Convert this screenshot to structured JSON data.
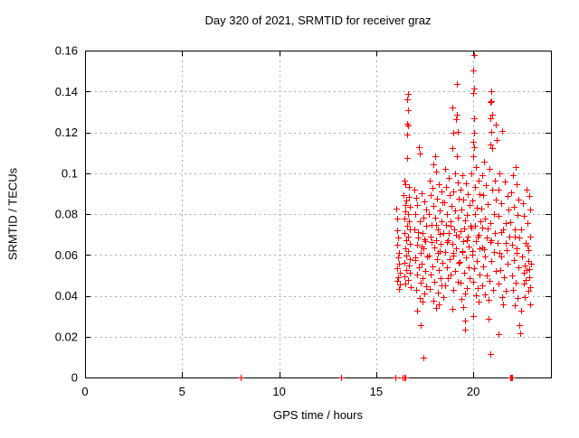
{
  "chart_data": {
    "type": "scatter",
    "title": "Day 320 of 2021, SRMTID for receiver graz",
    "xlabel": "GPS time / hours",
    "ylabel": "SRMTID / TECUs",
    "xlim": [
      0,
      24
    ],
    "ylim": [
      0,
      0.16
    ],
    "xticks": [
      0,
      5,
      10,
      15,
      20
    ],
    "xtick_labels": [
      "0",
      "5",
      "10",
      "15",
      "20"
    ],
    "yticks": [
      0,
      0.02,
      0.04,
      0.06,
      0.08,
      0.1,
      0.12,
      0.14,
      0.16
    ],
    "ytick_labels": [
      "0",
      "0.02",
      "0.04",
      "0.06",
      "0.08",
      "0.1",
      "0.12",
      "0.14",
      "0.16"
    ],
    "grid": true,
    "grid_style": "dashed",
    "grid_color": "#a8a8a8",
    "axis_color": "#000000",
    "background_color": "#ffffff",
    "legend": "none",
    "marker": "plus",
    "marker_color": "#ff0000",
    "points": [
      [
        8.02,
        0
      ],
      [
        13.2,
        0
      ],
      [
        15.98,
        0
      ],
      [
        16.38,
        0
      ],
      [
        16.44,
        0
      ],
      [
        16.5,
        0
      ],
      [
        21.9,
        0
      ],
      [
        21.94,
        0
      ],
      [
        21.98,
        0
      ],
      [
        16.04,
        0.0825
      ],
      [
        16.07,
        0.0776
      ],
      [
        16.1,
        0.0722
      ],
      [
        16.12,
        0.0684
      ],
      [
        16.08,
        0.0651
      ],
      [
        16.15,
        0.0612
      ],
      [
        16.11,
        0.0586
      ],
      [
        16.18,
        0.0558
      ],
      [
        16.06,
        0.0537
      ],
      [
        16.2,
        0.0511
      ],
      [
        16.14,
        0.0492
      ],
      [
        16.09,
        0.0475
      ],
      [
        16.22,
        0.0456
      ],
      [
        16.16,
        0.0433
      ],
      [
        16.62,
        0.1388
      ],
      [
        16.6,
        0.1362
      ],
      [
        16.63,
        0.1308
      ],
      [
        16.58,
        0.1242
      ],
      [
        16.64,
        0.1232
      ],
      [
        16.59,
        0.1188
      ],
      [
        16.61,
        0.1072
      ],
      [
        16.45,
        0.0962
      ],
      [
        16.52,
        0.0948
      ],
      [
        16.67,
        0.0931
      ],
      [
        16.42,
        0.0895
      ],
      [
        16.7,
        0.0882
      ],
      [
        16.55,
        0.0868
      ],
      [
        16.48,
        0.0845
      ],
      [
        16.73,
        0.0837
      ],
      [
        16.5,
        0.0815
      ],
      [
        16.63,
        0.0798
      ],
      [
        16.46,
        0.0779
      ],
      [
        16.69,
        0.0765
      ],
      [
        16.57,
        0.0744
      ],
      [
        16.74,
        0.0727
      ],
      [
        16.44,
        0.0709
      ],
      [
        16.66,
        0.0688
      ],
      [
        16.53,
        0.0672
      ],
      [
        16.71,
        0.0655
      ],
      [
        16.49,
        0.0634
      ],
      [
        16.62,
        0.0618
      ],
      [
        16.56,
        0.0598
      ],
      [
        16.75,
        0.0581
      ],
      [
        16.47,
        0.0563
      ],
      [
        16.68,
        0.0547
      ],
      [
        16.54,
        0.0528
      ],
      [
        16.72,
        0.0512
      ],
      [
        16.43,
        0.0494
      ],
      [
        16.65,
        0.0477
      ],
      [
        16.51,
        0.0458
      ],
      [
        16.76,
        0.0441
      ],
      [
        17.18,
        0.1128
      ],
      [
        17.22,
        0.1096
      ],
      [
        16.95,
        0.0921
      ],
      [
        17.35,
        0.0902
      ],
      [
        17.05,
        0.0878
      ],
      [
        17.48,
        0.0861
      ],
      [
        17.12,
        0.0842
      ],
      [
        17.55,
        0.0824
      ],
      [
        17.02,
        0.0801
      ],
      [
        17.42,
        0.0783
      ],
      [
        17.25,
        0.0765
      ],
      [
        17.58,
        0.0744
      ],
      [
        16.98,
        0.0726
      ],
      [
        17.38,
        0.0708
      ],
      [
        17.15,
        0.0687
      ],
      [
        17.52,
        0.0669
      ],
      [
        17.08,
        0.0648
      ],
      [
        17.45,
        0.0631
      ],
      [
        17.28,
        0.0612
      ],
      [
        17.6,
        0.0594
      ],
      [
        17.0,
        0.0576
      ],
      [
        17.32,
        0.0557
      ],
      [
        17.2,
        0.0539
      ],
      [
        17.5,
        0.0521
      ],
      [
        17.1,
        0.0502
      ],
      [
        17.4,
        0.0484
      ],
      [
        17.3,
        0.0465
      ],
      [
        17.56,
        0.0447
      ],
      [
        17.06,
        0.0428
      ],
      [
        17.46,
        0.0409
      ],
      [
        17.24,
        0.0391
      ],
      [
        17.36,
        0.0372
      ],
      [
        17.16,
        0.0712
      ],
      [
        17.47,
        0.0678
      ],
      [
        17.33,
        0.0643
      ],
      [
        17.03,
        0.0588
      ],
      [
        17.1,
        0.0328
      ],
      [
        17.29,
        0.0256
      ],
      [
        17.44,
        0.0098
      ],
      [
        18.02,
        0.1081
      ],
      [
        17.95,
        0.1042
      ],
      [
        18.1,
        0.1008
      ],
      [
        17.75,
        0.0965
      ],
      [
        18.22,
        0.0947
      ],
      [
        17.88,
        0.0928
      ],
      [
        18.35,
        0.0911
      ],
      [
        17.8,
        0.0893
      ],
      [
        18.15,
        0.0875
      ],
      [
        18.42,
        0.0856
      ],
      [
        17.92,
        0.0838
      ],
      [
        18.28,
        0.0819
      ],
      [
        17.72,
        0.0801
      ],
      [
        18.05,
        0.0783
      ],
      [
        18.38,
        0.0764
      ],
      [
        17.85,
        0.0746
      ],
      [
        18.18,
        0.0727
      ],
      [
        18.45,
        0.0709
      ],
      [
        17.78,
        0.0691
      ],
      [
        18.08,
        0.0672
      ],
      [
        18.32,
        0.0654
      ],
      [
        17.98,
        0.0635
      ],
      [
        18.25,
        0.0617
      ],
      [
        17.7,
        0.0598
      ],
      [
        18.12,
        0.058
      ],
      [
        18.4,
        0.0561
      ],
      [
        17.9,
        0.0543
      ],
      [
        18.2,
        0.0524
      ],
      [
        17.82,
        0.0506
      ],
      [
        18.3,
        0.0487
      ],
      [
        18.0,
        0.0469
      ],
      [
        18.35,
        0.0451
      ],
      [
        17.76,
        0.0432
      ],
      [
        18.16,
        0.0414
      ],
      [
        18.44,
        0.0395
      ],
      [
        17.94,
        0.0377
      ],
      [
        18.24,
        0.0358
      ],
      [
        18.06,
        0.034
      ],
      [
        18.09,
        0.0745
      ],
      [
        18.29,
        0.0702
      ],
      [
        17.87,
        0.0663
      ],
      [
        18.19,
        0.0608
      ],
      [
        19.15,
        0.1438
      ],
      [
        19.16,
        0.1286
      ],
      [
        19.12,
        0.1262
      ],
      [
        18.94,
        0.1322
      ],
      [
        18.95,
        0.1199
      ],
      [
        19.18,
        0.1204
      ],
      [
        18.92,
        0.1121
      ],
      [
        19.14,
        0.1082
      ],
      [
        18.55,
        0.1021
      ],
      [
        19.05,
        0.0998
      ],
      [
        18.72,
        0.0975
      ],
      [
        19.22,
        0.0953
      ],
      [
        18.6,
        0.0931
      ],
      [
        18.98,
        0.0912
      ],
      [
        18.78,
        0.0894
      ],
      [
        19.25,
        0.0875
      ],
      [
        18.52,
        0.0857
      ],
      [
        18.88,
        0.0838
      ],
      [
        19.08,
        0.0819
      ],
      [
        18.65,
        0.0801
      ],
      [
        19.2,
        0.0782
      ],
      [
        18.82,
        0.0764
      ],
      [
        18.58,
        0.0745
      ],
      [
        19.02,
        0.0727
      ],
      [
        18.75,
        0.0708
      ],
      [
        19.26,
        0.0689
      ],
      [
        18.68,
        0.0671
      ],
      [
        18.9,
        0.0652
      ],
      [
        19.1,
        0.0634
      ],
      [
        18.54,
        0.0615
      ],
      [
        18.96,
        0.0597
      ],
      [
        18.8,
        0.0578
      ],
      [
        19.24,
        0.056
      ],
      [
        18.62,
        0.0541
      ],
      [
        19.06,
        0.0523
      ],
      [
        18.85,
        0.0504
      ],
      [
        18.7,
        0.0486
      ],
      [
        19.18,
        0.0467
      ],
      [
        18.56,
        0.0449
      ],
      [
        18.99,
        0.043
      ],
      [
        18.84,
        0.0742
      ],
      [
        19.11,
        0.0698
      ],
      [
        18.64,
        0.0662
      ],
      [
        18.97,
        0.0608
      ],
      [
        18.92,
        0.0337
      ],
      [
        19.45,
        0.0988
      ],
      [
        19.6,
        0.0952
      ],
      [
        19.35,
        0.0921
      ],
      [
        19.72,
        0.0898
      ],
      [
        19.5,
        0.0872
      ],
      [
        19.8,
        0.0846
      ],
      [
        19.38,
        0.0821
      ],
      [
        19.65,
        0.0795
      ],
      [
        19.55,
        0.0768
      ],
      [
        19.84,
        0.0742
      ],
      [
        19.32,
        0.0717
      ],
      [
        19.7,
        0.0691
      ],
      [
        19.48,
        0.0666
      ],
      [
        19.78,
        0.064
      ],
      [
        19.42,
        0.0615
      ],
      [
        19.62,
        0.0589
      ],
      [
        19.3,
        0.0564
      ],
      [
        19.75,
        0.0538
      ],
      [
        19.52,
        0.0513
      ],
      [
        19.82,
        0.0487
      ],
      [
        19.36,
        0.0462
      ],
      [
        19.68,
        0.0436
      ],
      [
        19.58,
        0.0411
      ],
      [
        19.4,
        0.0385
      ],
      [
        19.54,
        0.0728
      ],
      [
        19.66,
        0.0672
      ],
      [
        19.44,
        0.0618
      ],
      [
        19.49,
        0.0345
      ],
      [
        19.59,
        0.0279
      ],
      [
        19.57,
        0.0234
      ],
      [
        20.02,
        0.158
      ],
      [
        20.0,
        0.1502
      ],
      [
        20.04,
        0.1416
      ],
      [
        19.99,
        0.1394
      ],
      [
        20.05,
        0.1268
      ],
      [
        20.03,
        0.1199
      ],
      [
        20.01,
        0.1152
      ],
      [
        20.06,
        0.1129
      ],
      [
        19.97,
        0.1085
      ],
      [
        20.15,
        0.1032
      ],
      [
        19.92,
        0.0998
      ],
      [
        20.28,
        0.0964
      ],
      [
        20.1,
        0.0931
      ],
      [
        20.32,
        0.0898
      ],
      [
        19.95,
        0.0865
      ],
      [
        20.2,
        0.0832
      ],
      [
        20.08,
        0.0799
      ],
      [
        20.35,
        0.0766
      ],
      [
        19.9,
        0.0733
      ],
      [
        20.25,
        0.07
      ],
      [
        20.12,
        0.0667
      ],
      [
        20.3,
        0.0634
      ],
      [
        19.94,
        0.0601
      ],
      [
        20.18,
        0.0568
      ],
      [
        20.05,
        0.0535
      ],
      [
        20.33,
        0.0502
      ],
      [
        19.98,
        0.0469
      ],
      [
        20.22,
        0.0436
      ],
      [
        20.14,
        0.0403
      ],
      [
        20.26,
        0.037
      ],
      [
        20.07,
        0.0742
      ],
      [
        20.24,
        0.0688
      ],
      [
        19.96,
        0.0618
      ],
      [
        20.0,
        0.0301
      ],
      [
        20.91,
        0.1402
      ],
      [
        20.93,
        0.1354
      ],
      [
        20.89,
        0.1348
      ],
      [
        20.95,
        0.1288
      ],
      [
        20.9,
        0.1268
      ],
      [
        21.17,
        0.1238
      ],
      [
        20.92,
        0.1204
      ],
      [
        20.88,
        0.1142
      ],
      [
        20.97,
        0.1121
      ],
      [
        20.55,
        0.1058
      ],
      [
        20.85,
        0.1022
      ],
      [
        20.45,
        0.0988
      ],
      [
        21.1,
        0.0965
      ],
      [
        20.65,
        0.0942
      ],
      [
        20.95,
        0.0918
      ],
      [
        20.5,
        0.0895
      ],
      [
        21.14,
        0.0872
      ],
      [
        20.75,
        0.0848
      ],
      [
        20.42,
        0.0825
      ],
      [
        21.08,
        0.0802
      ],
      [
        20.6,
        0.0778
      ],
      [
        20.9,
        0.0755
      ],
      [
        20.48,
        0.0732
      ],
      [
        21.12,
        0.0708
      ],
      [
        20.7,
        0.0685
      ],
      [
        20.88,
        0.0662
      ],
      [
        20.44,
        0.0638
      ],
      [
        21.05,
        0.0615
      ],
      [
        20.58,
        0.0592
      ],
      [
        20.92,
        0.0568
      ],
      [
        20.52,
        0.0545
      ],
      [
        21.15,
        0.0522
      ],
      [
        20.68,
        0.0498
      ],
      [
        20.82,
        0.0475
      ],
      [
        20.46,
        0.0452
      ],
      [
        21.02,
        0.0428
      ],
      [
        20.62,
        0.0405
      ],
      [
        20.78,
        0.0382
      ],
      [
        20.73,
        0.0728
      ],
      [
        20.94,
        0.0672
      ],
      [
        20.56,
        0.0628
      ],
      [
        20.8,
        0.0288
      ],
      [
        20.89,
        0.0115
      ],
      [
        21.5,
        0.1206
      ],
      [
        21.22,
        0.1162
      ],
      [
        21.35,
        0.0998
      ],
      [
        21.62,
        0.0958
      ],
      [
        21.28,
        0.0921
      ],
      [
        21.75,
        0.0888
      ],
      [
        21.45,
        0.0855
      ],
      [
        21.82,
        0.0822
      ],
      [
        21.3,
        0.0789
      ],
      [
        21.68,
        0.0756
      ],
      [
        21.52,
        0.0723
      ],
      [
        21.84,
        0.069
      ],
      [
        21.25,
        0.0657
      ],
      [
        21.72,
        0.0624
      ],
      [
        21.42,
        0.0591
      ],
      [
        21.78,
        0.0558
      ],
      [
        21.38,
        0.0525
      ],
      [
        21.58,
        0.0492
      ],
      [
        21.32,
        0.0459
      ],
      [
        21.65,
        0.0426
      ],
      [
        21.48,
        0.0393
      ],
      [
        21.55,
        0.036
      ],
      [
        21.46,
        0.0712
      ],
      [
        21.69,
        0.0658
      ],
      [
        21.36,
        0.0608
      ],
      [
        21.3,
        0.0212
      ],
      [
        22.18,
        0.1028
      ],
      [
        22.02,
        0.0992
      ],
      [
        22.25,
        0.0945
      ],
      [
        21.95,
        0.0908
      ],
      [
        22.32,
        0.0871
      ],
      [
        22.08,
        0.0834
      ],
      [
        22.28,
        0.0797
      ],
      [
        21.92,
        0.076
      ],
      [
        22.15,
        0.0723
      ],
      [
        22.35,
        0.0686
      ],
      [
        22.0,
        0.0649
      ],
      [
        22.22,
        0.0612
      ],
      [
        22.1,
        0.0575
      ],
      [
        22.3,
        0.0538
      ],
      [
        21.98,
        0.0501
      ],
      [
        22.18,
        0.0464
      ],
      [
        22.05,
        0.0427
      ],
      [
        22.26,
        0.039
      ],
      [
        22.12,
        0.0353
      ],
      [
        22.13,
        0.0688
      ],
      [
        22.24,
        0.0632
      ],
      [
        22.39,
        0.0256
      ],
      [
        22.4,
        0.0215
      ],
      [
        22.72,
        0.0921
      ],
      [
        22.88,
        0.0888
      ],
      [
        22.55,
        0.0855
      ],
      [
        22.95,
        0.0822
      ],
      [
        22.62,
        0.0789
      ],
      [
        22.8,
        0.0756
      ],
      [
        22.48,
        0.0723
      ],
      [
        22.92,
        0.069
      ],
      [
        22.68,
        0.0657
      ],
      [
        22.85,
        0.0624
      ],
      [
        22.52,
        0.0591
      ],
      [
        22.98,
        0.0558
      ],
      [
        22.75,
        0.0525
      ],
      [
        22.9,
        0.0492
      ],
      [
        22.58,
        0.0459
      ],
      [
        22.82,
        0.0426
      ],
      [
        22.65,
        0.0393
      ],
      [
        22.95,
        0.036
      ],
      [
        22.45,
        0.0327
      ],
      [
        22.78,
        0.0644
      ],
      [
        22.86,
        0.0531
      ],
      [
        22.7,
        0.0476
      ],
      [
        22.93,
        0.0443
      ],
      [
        22.6,
        0.0512
      ],
      [
        22.83,
        0.0572
      ],
      [
        22.66,
        0.0548
      ]
    ]
  }
}
